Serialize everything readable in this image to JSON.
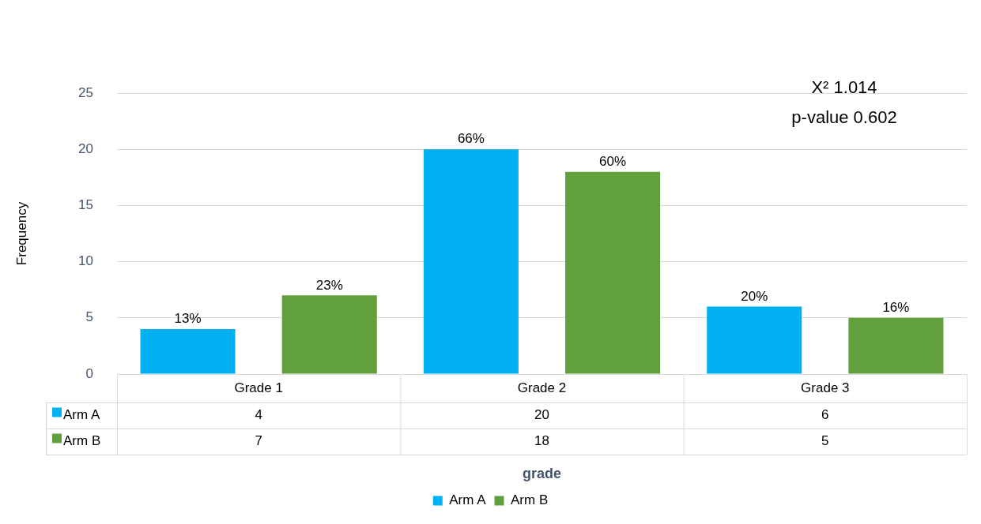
{
  "chart_data": {
    "type": "bar",
    "xlabel": "grade",
    "ylabel": "Frequency",
    "categories": [
      "Grade 1",
      "Grade 2",
      "Grade 3"
    ],
    "series": [
      {
        "name": "Arm A",
        "color": "#00b0f0",
        "values": [
          4,
          20,
          6
        ]
      },
      {
        "name": "Arm B",
        "color": "#62a03e",
        "values": [
          7,
          18,
          5
        ]
      }
    ],
    "ylim": [
      0,
      25
    ],
    "yticks": [
      0,
      5,
      10,
      15,
      20,
      25
    ],
    "grid": "y",
    "legend": "bottom",
    "data_labels": true,
    "annotations": [
      "X² 1.014",
      "p-value 0.602",
      "13%",
      "23%",
      "66%",
      "60%",
      "20%",
      "16%"
    ]
  }
}
